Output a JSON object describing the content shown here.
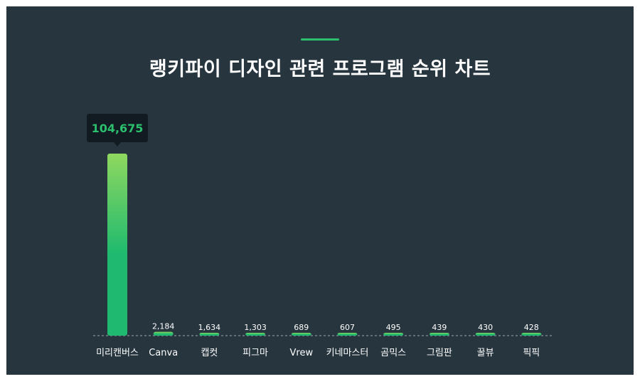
{
  "title": "랭키파이 디자인 관련 프로그램 순위 차트",
  "colors": {
    "background": "#27353f",
    "bar_top": "#8fd85f",
    "bar_bottom": "#1fba6f",
    "accent": "#2bbf6e",
    "tooltip_bg": "#111b21"
  },
  "chart_data": {
    "type": "bar",
    "title": "랭키파이 디자인 관련 프로그램 순위 차트",
    "categories": [
      "미리캔버스",
      "Canva",
      "캡컷",
      "피그마",
      "Vrew",
      "키네마스터",
      "곰믹스",
      "그림판",
      "꿀뷰",
      "픽픽"
    ],
    "value_labels": [
      "104,675",
      "2,184",
      "1,634",
      "1,303",
      "689",
      "607",
      "495",
      "439",
      "430",
      "428"
    ],
    "values": [
      104675,
      2184,
      1634,
      1303,
      689,
      607,
      495,
      439,
      430,
      428
    ],
    "highlighted_label": "104,675",
    "ylim": [
      0,
      104675
    ],
    "grid": false,
    "legend": "none"
  }
}
